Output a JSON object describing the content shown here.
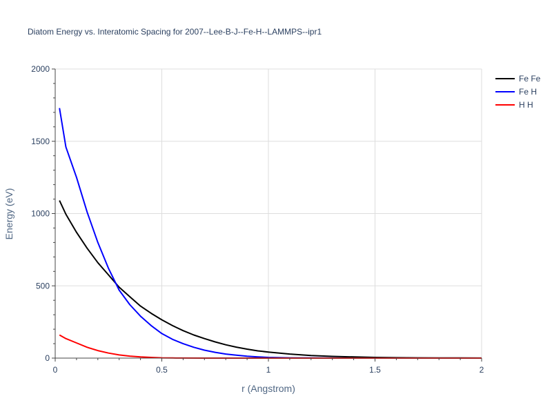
{
  "chart_data": {
    "type": "line",
    "title": "Diatom Energy vs. Interatomic Spacing for 2007--Lee-B-J--Fe-H--LAMMPS--ipr1",
    "xlabel": "r (Angstrom)",
    "ylabel": "Energy (eV)",
    "xlim": [
      0,
      2
    ],
    "ylim": [
      0,
      2000
    ],
    "xticks": [
      0,
      0.5,
      1,
      1.5,
      2
    ],
    "xtick_labels": [
      "0",
      "0.5",
      "1",
      "1.5",
      "2"
    ],
    "yticks": [
      0,
      500,
      1000,
      1500,
      2000
    ],
    "ytick_labels": [
      "0",
      "500",
      "1000",
      "1500",
      "2000"
    ],
    "grid": true,
    "legend_position": "top-right",
    "series": [
      {
        "name": "Fe Fe",
        "color": "#000000",
        "x": [
          0.02,
          0.05,
          0.1,
          0.15,
          0.2,
          0.25,
          0.3,
          0.35,
          0.4,
          0.45,
          0.5,
          0.55,
          0.6,
          0.65,
          0.7,
          0.75,
          0.8,
          0.85,
          0.9,
          0.95,
          1.0,
          1.1,
          1.2,
          1.3,
          1.4,
          1.5,
          1.6,
          1.7,
          1.8,
          1.9,
          2.0
        ],
        "y": [
          1090,
          995,
          870,
          760,
          660,
          575,
          490,
          425,
          360,
          310,
          265,
          225,
          190,
          160,
          135,
          112,
          92,
          76,
          62,
          50,
          42,
          28,
          18,
          12,
          8,
          5,
          3,
          2,
          1.5,
          1,
          0.5
        ]
      },
      {
        "name": "Fe H",
        "color": "#0000ff",
        "x": [
          0.02,
          0.05,
          0.1,
          0.15,
          0.2,
          0.25,
          0.3,
          0.35,
          0.4,
          0.45,
          0.5,
          0.55,
          0.6,
          0.65,
          0.7,
          0.75,
          0.8,
          0.85,
          0.9,
          0.95,
          1.0,
          1.1,
          1.2,
          1.3,
          1.4,
          1.5,
          1.6,
          1.7,
          1.8,
          1.9,
          2.0
        ],
        "y": [
          1730,
          1460,
          1250,
          1010,
          800,
          620,
          470,
          370,
          290,
          225,
          170,
          130,
          100,
          75,
          55,
          40,
          28,
          20,
          13,
          8,
          5,
          2,
          1,
          0.5,
          0,
          0,
          0,
          0,
          0,
          0,
          0
        ]
      },
      {
        "name": "H H",
        "color": "#ff0000",
        "x": [
          0.02,
          0.05,
          0.1,
          0.15,
          0.2,
          0.25,
          0.3,
          0.35,
          0.4,
          0.45,
          0.5,
          0.55,
          0.6,
          0.7,
          0.8,
          0.9,
          1.0,
          1.2,
          1.4,
          1.6,
          1.8,
          2.0
        ],
        "y": [
          160,
          135,
          105,
          75,
          52,
          35,
          22,
          14,
          8,
          5,
          2,
          1,
          0.5,
          0,
          0,
          0,
          0,
          0,
          0,
          0,
          0,
          0
        ]
      }
    ]
  }
}
